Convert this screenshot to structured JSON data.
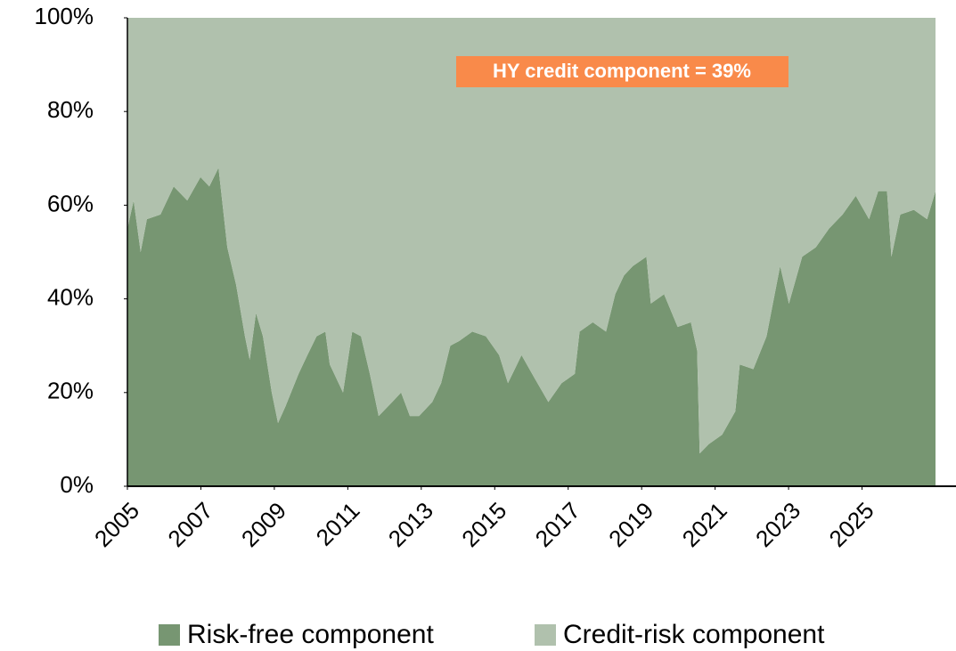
{
  "chart_data": {
    "type": "stacked_area",
    "annotation": "HY credit component = 39%",
    "x": [
      2005.0,
      2005.17,
      2005.36,
      2005.53,
      2005.9,
      2006.26,
      2006.63,
      2006.99,
      2007.23,
      2007.48,
      2007.72,
      2007.96,
      2008.2,
      2008.33,
      2008.5,
      2008.69,
      2008.93,
      2009.1,
      2009.3,
      2009.66,
      2009.9,
      2010.15,
      2010.39,
      2010.51,
      2010.87,
      2011.12,
      2011.36,
      2011.6,
      2011.84,
      2012.21,
      2012.45,
      2012.69,
      2012.94,
      2013.3,
      2013.54,
      2013.79,
      2014.03,
      2014.39,
      2014.76,
      2015.12,
      2015.36,
      2015.73,
      2016.09,
      2016.46,
      2016.82,
      2017.18,
      2017.31,
      2017.67,
      2018.03,
      2018.28,
      2018.52,
      2018.76,
      2019.13,
      2019.25,
      2019.61,
      2019.98,
      2020.34,
      2020.51,
      2020.58,
      2020.83,
      2021.19,
      2021.55,
      2021.67,
      2022.04,
      2022.4,
      2022.77,
      2023.01,
      2023.37,
      2023.74,
      2024.1,
      2024.47,
      2024.83,
      2025.19,
      2025.44,
      2025.68,
      2025.8,
      2026.04,
      2026.41,
      2026.77,
      2027.0
    ],
    "series": [
      {
        "name": "Risk-free component",
        "color": "#779672",
        "values": [
          55,
          61,
          50,
          57,
          58,
          64,
          61,
          66,
          64,
          68,
          51,
          43,
          32,
          27,
          37,
          32,
          20,
          13.5,
          17,
          24,
          28,
          32,
          33,
          26,
          20,
          33,
          32,
          24,
          15,
          18,
          20,
          15,
          15,
          18,
          22,
          30,
          31,
          33,
          32,
          28,
          22,
          28,
          23,
          18,
          22,
          24,
          33,
          35,
          33,
          41,
          45,
          47,
          49,
          39,
          41,
          34,
          35,
          29,
          7,
          9,
          11,
          16,
          26,
          25,
          32,
          47,
          39,
          49,
          51,
          55,
          58,
          62,
          57,
          63,
          63,
          49,
          58,
          59,
          57,
          63
        ]
      },
      {
        "name": "Credit-risk component",
        "color": "#b0c1ad",
        "values": [
          45,
          39,
          50,
          43,
          42,
          36,
          39,
          34,
          36,
          32,
          49,
          57,
          68,
          73,
          63,
          68,
          80,
          86.5,
          83,
          76,
          72,
          68,
          67,
          74,
          80,
          67,
          68,
          76,
          85,
          82,
          80,
          85,
          85,
          82,
          78,
          70,
          69,
          67,
          68,
          72,
          78,
          72,
          77,
          82,
          78,
          76,
          67,
          65,
          67,
          59,
          55,
          53,
          51,
          61,
          59,
          66,
          65,
          71,
          93,
          91,
          89,
          84,
          74,
          75,
          68,
          53,
          61,
          51,
          49,
          45,
          42,
          38,
          43,
          37,
          37,
          51,
          42,
          41,
          43,
          37
        ]
      }
    ],
    "xlim": [
      2005,
      2027
    ],
    "xticks": [
      2005,
      2007,
      2009,
      2011,
      2013,
      2015,
      2017,
      2019,
      2021,
      2023,
      2025
    ],
    "ylim": [
      0,
      100
    ],
    "yticks": [
      {
        "value": 0,
        "label": "0%"
      },
      {
        "value": 20,
        "label": "20%"
      },
      {
        "value": 40,
        "label": "40%"
      },
      {
        "value": 60,
        "label": "60%"
      },
      {
        "value": 80,
        "label": "80%"
      },
      {
        "value": 100,
        "label": "100%"
      }
    ],
    "grid": false,
    "legend": "bottom"
  }
}
